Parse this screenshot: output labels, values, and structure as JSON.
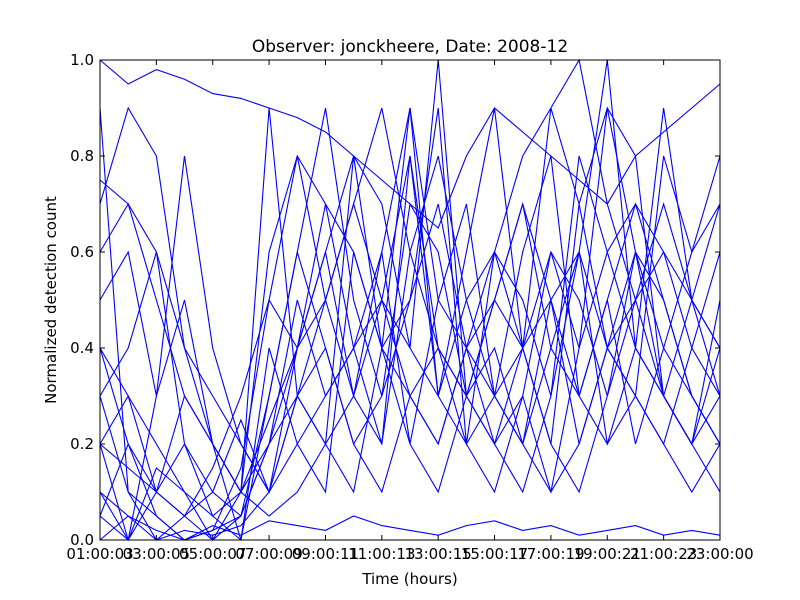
{
  "chart_data": {
    "type": "line",
    "title": "Observer: jonckheere, Date: 2008-12",
    "xlabel": "Time (hours)",
    "ylabel": "Normalized detection count",
    "x_tick_labels": [
      "01:00:03",
      "03:00:05",
      "05:00:07",
      "07:00:09",
      "09:00:11",
      "11:00:13",
      "13:00:15",
      "15:00:17",
      "17:00:19",
      "19:00:21",
      "21:00:23",
      "23:00:00"
    ],
    "x_hours": [
      1,
      2,
      3,
      4,
      5,
      6,
      7,
      8,
      9,
      10,
      11,
      12,
      13,
      14,
      15,
      16,
      17,
      18,
      19,
      20,
      21,
      22,
      23
    ],
    "xlim": [
      1,
      23
    ],
    "ylim": [
      0,
      1
    ],
    "y_ticks": [
      "0.0",
      "0.2",
      "0.4",
      "0.6",
      "0.8",
      "1.0"
    ],
    "grid": false,
    "line_color": "#0000ff",
    "series": [
      {
        "values": [
          0.0,
          0.05,
          0.02,
          0.0,
          0.03,
          0.01,
          0.04,
          0.03,
          0.02,
          0.05,
          0.03,
          0.02,
          0.01,
          0.03,
          0.04,
          0.02,
          0.03,
          0.01,
          0.02,
          0.03,
          0.01,
          0.02,
          0.01
        ]
      },
      {
        "values": [
          0.2,
          0.3,
          0.1,
          0.05,
          0.0,
          0.1,
          0.25,
          0.4,
          0.6,
          0.3,
          0.5,
          0.8,
          0.4,
          0.3,
          0.2,
          0.1,
          0.3,
          0.6,
          1.0,
          0.4,
          0.3,
          0.2,
          0.5
        ]
      },
      {
        "values": [
          0.4,
          0.2,
          0.05,
          0.0,
          0.02,
          0.15,
          0.5,
          0.8,
          0.7,
          0.6,
          0.4,
          0.9,
          0.3,
          0.5,
          0.6,
          0.4,
          0.2,
          0.7,
          0.9,
          0.8,
          0.3,
          0.2,
          0.4
        ]
      },
      {
        "values": [
          0.1,
          0.0,
          0.15,
          0.1,
          0.05,
          0.0,
          0.3,
          0.6,
          0.9,
          0.5,
          0.3,
          0.7,
          0.6,
          0.3,
          0.4,
          0.2,
          0.1,
          0.4,
          0.6,
          0.7,
          0.5,
          0.3,
          0.2
        ]
      },
      {
        "values": [
          0.3,
          0.1,
          0.0,
          0.05,
          0.1,
          0.25,
          0.1,
          0.4,
          0.5,
          0.7,
          0.9,
          0.6,
          0.8,
          0.5,
          0.3,
          0.6,
          0.8,
          0.3,
          0.5,
          0.2,
          0.4,
          0.6,
          0.8
        ]
      },
      {
        "values": [
          0.75,
          0.7,
          0.6,
          0.4,
          0.2,
          0.1,
          0.2,
          0.3,
          0.4,
          0.2,
          0.1,
          0.3,
          0.2,
          0.4,
          0.6,
          0.8,
          0.9,
          1.0,
          0.7,
          0.5,
          0.6,
          0.4,
          0.3
        ]
      },
      {
        "values": [
          0.9,
          0.1,
          0.05,
          0.0,
          0.02,
          0.05,
          0.2,
          0.5,
          0.3,
          0.4,
          0.6,
          0.2,
          0.1,
          0.3,
          0.5,
          0.7,
          0.4,
          0.6,
          0.2,
          0.3,
          0.8,
          0.6,
          0.7
        ]
      },
      {
        "values": [
          0.05,
          0.0,
          0.1,
          0.2,
          0.05,
          0.1,
          0.9,
          0.3,
          0.2,
          0.8,
          0.4,
          0.5,
          0.9,
          0.2,
          0.3,
          0.4,
          0.5,
          0.2,
          0.4,
          0.6,
          0.3,
          0.2,
          0.1
        ]
      },
      {
        "values": [
          0.5,
          0.6,
          0.3,
          0.8,
          0.4,
          0.2,
          0.1,
          0.2,
          0.3,
          0.4,
          0.5,
          0.3,
          0.4,
          0.2,
          0.6,
          0.5,
          0.3,
          0.8,
          0.6,
          0.4,
          0.9,
          0.5,
          0.3
        ]
      },
      {
        "values": [
          0.2,
          0.15,
          0.1,
          0.05,
          0.15,
          0.3,
          0.5,
          0.4,
          0.6,
          0.8,
          0.7,
          0.4,
          1.0,
          0.3,
          0.2,
          0.4,
          0.6,
          0.5,
          0.3,
          0.6,
          0.4,
          0.3,
          0.2
        ]
      },
      {
        "values": [
          1.0,
          0.95,
          0.98,
          0.96,
          0.93,
          0.92,
          0.9,
          0.88,
          0.85,
          0.8,
          0.75,
          0.7,
          0.65,
          0.8,
          0.9,
          0.85,
          0.8,
          0.75,
          0.7,
          0.8,
          0.85,
          0.9,
          0.95
        ]
      },
      {
        "values": [
          0.3,
          0.4,
          0.6,
          0.2,
          0.1,
          0.05,
          0.3,
          0.6,
          0.4,
          0.2,
          0.3,
          0.5,
          0.7,
          0.4,
          0.2,
          0.3,
          0.1,
          0.2,
          0.4,
          0.3,
          0.2,
          0.4,
          0.6
        ]
      },
      {
        "values": [
          0.6,
          0.7,
          0.5,
          0.3,
          0.2,
          0.1,
          0.05,
          0.1,
          0.2,
          0.3,
          0.6,
          0.9,
          0.5,
          0.4,
          0.3,
          0.2,
          0.4,
          0.3,
          0.5,
          0.7,
          0.6,
          0.5,
          0.4
        ]
      },
      {
        "values": [
          0.1,
          0.05,
          0.0,
          0.02,
          0.01,
          0.03,
          0.1,
          0.3,
          0.5,
          0.7,
          0.5,
          0.4,
          0.3,
          0.6,
          0.9,
          0.4,
          0.2,
          0.1,
          0.3,
          0.5,
          0.7,
          0.5,
          0.4
        ]
      },
      {
        "values": [
          0.05,
          0.2,
          0.1,
          0.3,
          0.2,
          0.0,
          0.4,
          0.2,
          0.1,
          0.6,
          0.4,
          0.2,
          0.5,
          0.7,
          0.3,
          0.2,
          0.5,
          0.6,
          0.4,
          0.3,
          0.2,
          0.1,
          0.2
        ]
      },
      {
        "values": [
          0.7,
          0.9,
          0.8,
          0.4,
          0.3,
          0.2,
          0.1,
          0.3,
          0.2,
          0.1,
          0.4,
          0.3,
          0.2,
          0.4,
          0.5,
          0.7,
          0.5,
          0.3,
          0.2,
          0.4,
          0.3,
          0.5,
          0.7
        ]
      },
      {
        "values": [
          0.2,
          0.0,
          0.3,
          0.5,
          0.2,
          0.1,
          0.6,
          0.8,
          0.5,
          0.3,
          0.2,
          0.6,
          0.4,
          0.3,
          0.5,
          0.4,
          0.9,
          0.7,
          0.4,
          0.5,
          0.3,
          0.2,
          0.3
        ]
      },
      {
        "values": [
          0.4,
          0.3,
          0.2,
          0.1,
          0.0,
          0.05,
          0.2,
          0.4,
          0.7,
          0.4,
          0.2,
          0.8,
          0.3,
          0.2,
          0.1,
          0.3,
          0.6,
          0.4,
          0.9,
          0.6,
          0.5,
          0.3,
          0.2
        ]
      }
    ]
  }
}
